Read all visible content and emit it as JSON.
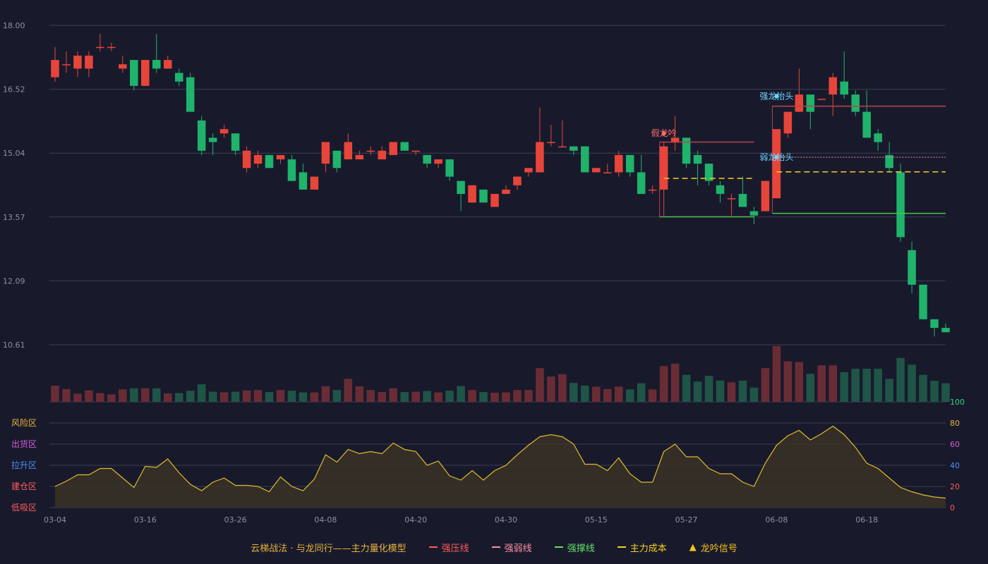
{
  "chart_data": {
    "type": "candlestick",
    "title": "",
    "price_axis": {
      "ylim": [
        10.61,
        18.0
      ],
      "ticks": [
        "18.00",
        "16.52",
        "15.04",
        "13.57",
        "12.09",
        "10.61"
      ]
    },
    "indicator_axis": {
      "ylim": [
        0,
        100
      ],
      "ticks": [
        "100",
        "80",
        "60",
        "40",
        "20",
        "0"
      ]
    },
    "zones": [
      "风险区",
      "出货区",
      "拉升区",
      "建仓区",
      "低吸区"
    ],
    "x_ticks": [
      {
        "i": 0,
        "label": "03-04"
      },
      {
        "i": 8,
        "label": "03-16"
      },
      {
        "i": 16,
        "label": "03-26"
      },
      {
        "i": 24,
        "label": "04-08"
      },
      {
        "i": 32,
        "label": "04-20"
      },
      {
        "i": 40,
        "label": "04-30"
      },
      {
        "i": 48,
        "label": "05-15"
      },
      {
        "i": 56,
        "label": "05-27"
      },
      {
        "i": 64,
        "label": "06-08"
      },
      {
        "i": 72,
        "label": "06-18"
      }
    ],
    "candles": [
      [
        16.8,
        17.2,
        17.5,
        16.7
      ],
      [
        17.1,
        17.1,
        17.4,
        16.9
      ],
      [
        17.0,
        17.3,
        17.4,
        16.8
      ],
      [
        17.0,
        17.3,
        17.4,
        16.8
      ],
      [
        17.5,
        17.5,
        17.8,
        17.4
      ],
      [
        17.5,
        17.5,
        17.6,
        17.4
      ],
      [
        17.0,
        17.1,
        17.3,
        16.9
      ],
      [
        17.2,
        16.6,
        17.2,
        16.5
      ],
      [
        16.6,
        17.2,
        17.2,
        16.6
      ],
      [
        17.2,
        17.0,
        17.8,
        16.9
      ],
      [
        17.0,
        17.2,
        17.3,
        17.0
      ],
      [
        16.9,
        16.7,
        17.0,
        16.6
      ],
      [
        16.8,
        16.0,
        16.9,
        16.0
      ],
      [
        15.8,
        15.1,
        15.9,
        15.0
      ],
      [
        15.4,
        15.3,
        15.5,
        15.0
      ],
      [
        15.5,
        15.6,
        15.7,
        15.4
      ],
      [
        15.5,
        15.1,
        15.5,
        15.0
      ],
      [
        14.7,
        15.1,
        15.2,
        14.6
      ],
      [
        14.8,
        15.0,
        15.1,
        14.7
      ],
      [
        15.0,
        14.7,
        15.0,
        14.7
      ],
      [
        14.9,
        15.0,
        15.0,
        14.8
      ],
      [
        14.9,
        14.4,
        15.0,
        14.4
      ],
      [
        14.6,
        14.2,
        14.8,
        14.2
      ],
      [
        14.2,
        14.5,
        14.5,
        14.2
      ],
      [
        14.8,
        15.3,
        15.3,
        14.6
      ],
      [
        15.1,
        14.7,
        15.1,
        14.6
      ],
      [
        14.9,
        15.3,
        15.5,
        14.9
      ],
      [
        14.9,
        15.0,
        15.1,
        14.9
      ],
      [
        15.1,
        15.1,
        15.2,
        15.0
      ],
      [
        14.9,
        15.1,
        15.2,
        14.9
      ],
      [
        15.0,
        15.3,
        15.3,
        15.0
      ],
      [
        15.3,
        15.1,
        15.3,
        15.1
      ],
      [
        15.1,
        15.1,
        15.1,
        15.0
      ],
      [
        15.0,
        14.8,
        15.0,
        14.7
      ],
      [
        14.8,
        14.9,
        14.9,
        14.7
      ],
      [
        14.9,
        14.5,
        14.9,
        14.4
      ],
      [
        14.4,
        14.1,
        14.4,
        13.7
      ],
      [
        13.9,
        14.3,
        14.3,
        13.9
      ],
      [
        14.2,
        13.9,
        14.2,
        13.9
      ],
      [
        13.8,
        14.1,
        14.1,
        13.8
      ],
      [
        14.1,
        14.2,
        14.3,
        14.1
      ],
      [
        14.3,
        14.5,
        14.5,
        14.2
      ],
      [
        14.6,
        14.7,
        14.7,
        14.5
      ],
      [
        14.6,
        15.3,
        16.1,
        14.6
      ],
      [
        15.3,
        15.3,
        15.7,
        15.2
      ],
      [
        15.2,
        15.2,
        15.8,
        15.2
      ],
      [
        15.2,
        15.1,
        15.2,
        15.0
      ],
      [
        15.2,
        14.6,
        15.2,
        14.6
      ],
      [
        14.6,
        14.7,
        14.7,
        14.6
      ],
      [
        14.6,
        14.6,
        14.8,
        14.6
      ],
      [
        14.6,
        15.0,
        15.1,
        14.5
      ],
      [
        15.0,
        14.6,
        15.0,
        14.5
      ],
      [
        14.6,
        14.1,
        15.0,
        14.1
      ],
      [
        14.2,
        14.2,
        14.3,
        14.1
      ],
      [
        14.2,
        15.2,
        15.3,
        13.6
      ],
      [
        15.3,
        15.4,
        15.9,
        15.1
      ],
      [
        15.4,
        14.8,
        15.4,
        14.7
      ],
      [
        15.0,
        14.8,
        15.1,
        14.3
      ],
      [
        14.8,
        14.4,
        14.8,
        14.3
      ],
      [
        14.3,
        14.1,
        14.4,
        13.9
      ],
      [
        14.0,
        14.0,
        14.1,
        13.6
      ],
      [
        14.1,
        13.8,
        14.5,
        13.8
      ],
      [
        13.7,
        13.6,
        13.8,
        13.4
      ],
      [
        13.7,
        14.4,
        14.4,
        13.7
      ],
      [
        14.0,
        15.6,
        15.6,
        14.0
      ],
      [
        15.5,
        16.0,
        16.0,
        15.4
      ],
      [
        16.0,
        16.4,
        17.0,
        16.0
      ],
      [
        16.4,
        16.0,
        16.4,
        15.6
      ],
      [
        16.3,
        16.3,
        16.3,
        16.3
      ],
      [
        16.4,
        16.8,
        16.9,
        15.9
      ],
      [
        16.7,
        16.4,
        17.4,
        16.3
      ],
      [
        16.4,
        16.0,
        16.5,
        15.9
      ],
      [
        16.0,
        15.4,
        16.5,
        15.4
      ],
      [
        15.5,
        15.3,
        15.6,
        15.1
      ],
      [
        15.0,
        14.7,
        15.3,
        14.6
      ],
      [
        14.6,
        13.1,
        14.8,
        13.0
      ],
      [
        12.8,
        12.0,
        13.0,
        11.8
      ],
      [
        12.0,
        11.2,
        12.0,
        11.2
      ],
      [
        11.2,
        11.0,
        11.2,
        10.8
      ],
      [
        11.0,
        10.9,
        11.1,
        10.9
      ]
    ],
    "volume": [
      48,
      38,
      24,
      34,
      26,
      22,
      37,
      40,
      40,
      40,
      25,
      26,
      33,
      52,
      30,
      28,
      30,
      34,
      35,
      29,
      35,
      33,
      28,
      28,
      46,
      35,
      68,
      46,
      35,
      29,
      40,
      29,
      30,
      32,
      28,
      33,
      47,
      35,
      29,
      27,
      28,
      35,
      35,
      100,
      75,
      82,
      56,
      48,
      45,
      38,
      45,
      37,
      55,
      37,
      106,
      113,
      80,
      60,
      77,
      63,
      58,
      63,
      42,
      100,
      165,
      120,
      118,
      83,
      108,
      108,
      88,
      98,
      98,
      98,
      68,
      130,
      110,
      80,
      62,
      55
    ],
    "indicator": [
      20,
      25,
      31,
      31,
      37,
      37,
      28,
      19,
      39,
      38,
      46,
      33,
      22,
      16,
      24,
      28,
      21,
      21,
      20,
      15,
      29,
      20,
      16,
      27,
      50,
      43,
      55,
      51,
      53,
      51,
      61,
      55,
      53,
      40,
      44,
      30,
      26,
      35,
      26,
      35,
      40,
      50,
      59,
      67,
      69,
      67,
      60,
      41,
      41,
      35,
      47,
      32,
      24,
      24,
      53,
      60,
      48,
      48,
      37,
      32,
      32,
      24,
      20,
      42,
      59,
      68,
      73,
      64,
      70,
      77,
      69,
      57,
      42,
      37,
      28,
      19,
      15,
      12,
      10,
      9
    ],
    "overlays": {
      "strong_pressure": [
        {
          "from": 54,
          "to": 62,
          "value": 15.3
        },
        {
          "from": 64,
          "to": 79,
          "value": 16.13
        }
      ],
      "strong_weak": [
        {
          "from": 64,
          "to": 79,
          "value": 14.95
        }
      ],
      "strong_support": [
        {
          "from": 54,
          "to": 62,
          "value": 13.57
        },
        {
          "from": 64,
          "to": 79,
          "value": 13.65
        }
      ],
      "main_cost": [
        {
          "from": 54,
          "to": 62,
          "value": 14.46
        },
        {
          "from": 64,
          "to": 79,
          "value": 14.61
        }
      ]
    },
    "annotations": [
      {
        "i": 54,
        "value": 15.5,
        "text": "假龙吟",
        "color": "#ff6b6b"
      },
      {
        "i": 64,
        "value": 16.36,
        "text": "强龙抬头",
        "color": "#6fd3ff"
      },
      {
        "i": 64,
        "value": 14.95,
        "text": "弱龙抬头",
        "color": "#6fd3ff"
      }
    ],
    "colors": {
      "up": "#e8453a",
      "down": "#1fb36b",
      "grid": "#3a3c52",
      "axis_text": "#8d8fa3",
      "indicator_line": "#e0bb2a",
      "indicator_fill": "#3a3326",
      "vol_up": "#6a2c34",
      "vol_down": "#1f5546",
      "zone_risk": "#e8b23d",
      "zone_ship": "#d65bd6",
      "zone_lift": "#4b8ff0",
      "zone_build": "#ff5a5a",
      "zone_low": "#ff5a5a"
    }
  },
  "legend": [
    {
      "label": "云梯战法 · 与龙同行——主力量化模型",
      "color": "#e8b23d",
      "mark": "none"
    },
    {
      "label": "强压线",
      "color": "#ff5a5a",
      "mark": "line"
    },
    {
      "label": "强弱线",
      "color": "#ff8fa0",
      "mark": "dash"
    },
    {
      "label": "强撑线",
      "color": "#63e063",
      "mark": "line"
    },
    {
      "label": "主力成本",
      "color": "#f5d020",
      "mark": "dash"
    },
    {
      "label": "龙吟信号",
      "color": "#f5c518",
      "mark": "▲"
    }
  ]
}
